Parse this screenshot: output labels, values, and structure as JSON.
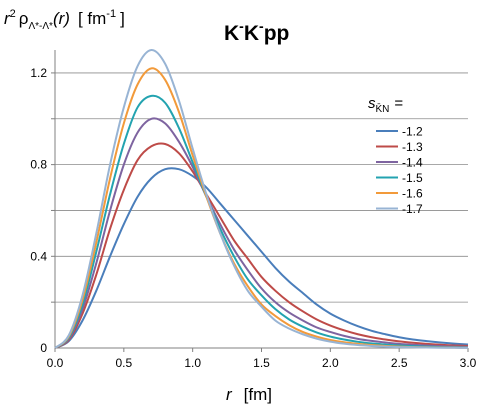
{
  "chart_data": {
    "type": "line",
    "title": "K-K-pp",
    "ylabel": "r² ρΛ*-Λ*(r)  [ fm⁻¹]",
    "ylabel_parts": {
      "r": "r",
      "sup2": "2",
      "rho": "ρ",
      "sub": "Λ*-Λ*",
      "arg": "(r)",
      "unit": "[ fm",
      "unit_sup": "-1",
      "unit_close": "]"
    },
    "title_parts": {
      "k1": "K",
      "k2": "K",
      "pp": "pp"
    },
    "xlabel": "r  [fm]",
    "xlabel_parts": {
      "r": "r",
      "unit": "[fm]"
    },
    "xlim": [
      0.0,
      3.0
    ],
    "ylim": [
      0.0,
      1.3
    ],
    "x_ticks": [
      "0.0",
      "0.5",
      "1.0",
      "1.5",
      "2.0",
      "2.5",
      "3.0"
    ],
    "x_tick_values": [
      0.0,
      0.5,
      1.0,
      1.5,
      2.0,
      2.5,
      3.0
    ],
    "y_ticks": [
      "0",
      "0.4",
      "0.8",
      "1.2"
    ],
    "y_tick_values": [
      0,
      0.4,
      0.8,
      1.2
    ],
    "y_gridlines": [
      0.2,
      0.4,
      0.6,
      0.8,
      1.0,
      1.2
    ],
    "grid": "horizontal",
    "legend": {
      "title": "s",
      "title_sub": "K̄N",
      "title_suffix": "=",
      "placement": "top-right"
    },
    "series": [
      {
        "name": "-1.2",
        "color": "#4a7ebb",
        "x": [
          0.0,
          0.1,
          0.2,
          0.3,
          0.4,
          0.5,
          0.6,
          0.7,
          0.8,
          0.9,
          1.0,
          1.1,
          1.2,
          1.3,
          1.4,
          1.5,
          1.6,
          1.7,
          1.8,
          1.9,
          2.0,
          2.1,
          2.2,
          2.3,
          2.4,
          2.5,
          2.6,
          2.7,
          2.8,
          2.9,
          3.0
        ],
        "values": [
          0,
          0.03,
          0.12,
          0.25,
          0.4,
          0.54,
          0.66,
          0.74,
          0.78,
          0.78,
          0.75,
          0.7,
          0.63,
          0.56,
          0.49,
          0.42,
          0.35,
          0.29,
          0.24,
          0.19,
          0.15,
          0.12,
          0.095,
          0.075,
          0.06,
          0.047,
          0.037,
          0.03,
          0.024,
          0.019,
          0.015
        ]
      },
      {
        "name": "-1.3",
        "color": "#be4b48",
        "x": [
          0.0,
          0.1,
          0.2,
          0.3,
          0.4,
          0.5,
          0.6,
          0.7,
          0.8,
          0.9,
          1.0,
          1.1,
          1.2,
          1.3,
          1.4,
          1.5,
          1.6,
          1.7,
          1.8,
          1.9,
          2.0,
          2.1,
          2.2,
          2.3,
          2.4,
          2.5,
          2.6,
          2.7,
          2.8,
          2.9,
          3.0
        ],
        "values": [
          0,
          0.035,
          0.15,
          0.32,
          0.52,
          0.69,
          0.82,
          0.88,
          0.89,
          0.85,
          0.77,
          0.67,
          0.57,
          0.47,
          0.39,
          0.31,
          0.25,
          0.2,
          0.16,
          0.125,
          0.098,
          0.077,
          0.06,
          0.047,
          0.037,
          0.029,
          0.023,
          0.018,
          0.014,
          0.011,
          0.009
        ]
      },
      {
        "name": "-1.4",
        "color": "#7e64a0",
        "x": [
          0.0,
          0.1,
          0.2,
          0.3,
          0.4,
          0.5,
          0.6,
          0.7,
          0.8,
          0.9,
          1.0,
          1.1,
          1.2,
          1.3,
          1.4,
          1.5,
          1.6,
          1.7,
          1.8,
          1.9,
          2.0,
          2.1,
          2.2,
          2.3,
          2.4,
          2.5,
          2.6,
          2.7,
          2.8,
          2.9,
          3.0
        ],
        "values": [
          0,
          0.04,
          0.17,
          0.37,
          0.6,
          0.8,
          0.94,
          1.0,
          0.98,
          0.9,
          0.79,
          0.66,
          0.54,
          0.43,
          0.34,
          0.26,
          0.2,
          0.155,
          0.12,
          0.09,
          0.07,
          0.053,
          0.04,
          0.031,
          0.024,
          0.018,
          0.014,
          0.011,
          0.008,
          0.006,
          0.005
        ]
      },
      {
        "name": "-1.5",
        "color": "#23a3b0",
        "x": [
          0.0,
          0.1,
          0.2,
          0.3,
          0.4,
          0.5,
          0.6,
          0.7,
          0.8,
          0.9,
          1.0,
          1.1,
          1.2,
          1.3,
          1.4,
          1.5,
          1.6,
          1.7,
          1.8,
          1.9,
          2.0,
          2.1,
          2.2,
          2.3,
          2.4,
          2.5,
          2.6,
          2.7,
          2.8,
          2.9,
          3.0
        ],
        "values": [
          0,
          0.045,
          0.19,
          0.42,
          0.67,
          0.89,
          1.05,
          1.1,
          1.07,
          0.96,
          0.81,
          0.66,
          0.52,
          0.4,
          0.3,
          0.23,
          0.17,
          0.125,
          0.093,
          0.068,
          0.05,
          0.037,
          0.027,
          0.02,
          0.015,
          0.011,
          0.008,
          0.006,
          0.004,
          0.003,
          0.002
        ]
      },
      {
        "name": "-1.6",
        "color": "#f29a3a",
        "x": [
          0.0,
          0.1,
          0.2,
          0.3,
          0.4,
          0.5,
          0.6,
          0.7,
          0.8,
          0.9,
          1.0,
          1.1,
          1.2,
          1.3,
          1.4,
          1.5,
          1.6,
          1.7,
          1.8,
          1.9,
          2.0,
          2.1,
          2.2,
          2.3,
          2.4,
          2.5,
          2.6,
          2.7,
          2.8,
          2.9,
          3.0
        ],
        "values": [
          0,
          0.05,
          0.21,
          0.46,
          0.74,
          0.98,
          1.15,
          1.22,
          1.17,
          1.03,
          0.84,
          0.66,
          0.5,
          0.37,
          0.27,
          0.19,
          0.14,
          0.1,
          0.07,
          0.05,
          0.035,
          0.025,
          0.018,
          0.013,
          0.009,
          0.006,
          0.004,
          0.003,
          0.002,
          0.0015,
          0.001
        ]
      },
      {
        "name": "-1.7",
        "color": "#98b4d4",
        "x": [
          0.0,
          0.1,
          0.2,
          0.3,
          0.4,
          0.5,
          0.6,
          0.7,
          0.8,
          0.9,
          1.0,
          1.1,
          1.2,
          1.3,
          1.4,
          1.5,
          1.6,
          1.7,
          1.8,
          1.9,
          2.0,
          2.1,
          2.2,
          2.3,
          2.4,
          2.5,
          2.6,
          2.7,
          2.8,
          2.9,
          3.0
        ],
        "values": [
          0,
          0.055,
          0.23,
          0.5,
          0.8,
          1.05,
          1.23,
          1.3,
          1.24,
          1.08,
          0.87,
          0.67,
          0.5,
          0.36,
          0.25,
          0.18,
          0.12,
          0.085,
          0.06,
          0.041,
          0.028,
          0.019,
          0.013,
          0.009,
          0.006,
          0.004,
          0.003,
          0.002,
          0.0013,
          0.0009,
          0.0006
        ]
      }
    ]
  }
}
